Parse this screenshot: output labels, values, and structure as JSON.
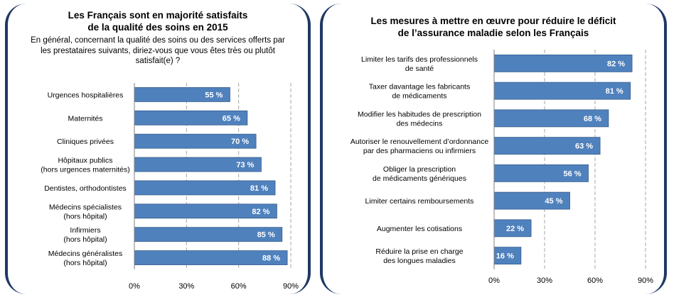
{
  "left_panel": {
    "title_line1": "Les Français sont en majorité satisfaits",
    "title_line2": "de la qualité des soins en 2015",
    "subtitle_line1": "En général, concernant la qualité des soins ou des services offerts par",
    "subtitle_line2": "les prestataires suivants, diriez-vous que vous êtes très ou plutôt",
    "subtitle_line3": "satisfait(e) ?"
  },
  "right_panel": {
    "title_line1": "Les mesures à mettre en œuvre pour réduire le déficit",
    "title_line2": "de l’assurance maladie selon les Français"
  },
  "colors": {
    "bar": "#4f81bd",
    "bar_border": "#385d8a",
    "frame": "#1f3864"
  },
  "chart_data": [
    {
      "type": "bar",
      "orientation": "horizontal",
      "title": "Les Français sont en majorité satisfaits de la qualité des soins en 2015",
      "categories": [
        [
          "Urgences hospitalières"
        ],
        [
          "Maternités"
        ],
        [
          "Cliniques privées"
        ],
        [
          "Hôpitaux publics",
          "(hors urgences maternités)"
        ],
        [
          "Dentistes, orthodontistes"
        ],
        [
          "Médecins spécialistes",
          "(hors hôpital)"
        ],
        [
          "Infirmiers",
          "(hors hôpital)"
        ],
        [
          "Médecins généralistes",
          "(hors hôpital)"
        ]
      ],
      "values": [
        55,
        65,
        70,
        73,
        81,
        82,
        85,
        88
      ],
      "data_labels": [
        "55 %",
        "65 %",
        "70 %",
        "73 %",
        "81 %",
        "82 %",
        "85 %",
        "88 %"
      ],
      "xlim": [
        0,
        90
      ],
      "xticks": [
        0,
        30,
        60,
        90
      ],
      "xtick_labels": [
        "0%",
        "30%",
        "60%",
        "90%"
      ],
      "grid": "vertical dashed"
    },
    {
      "type": "bar",
      "orientation": "horizontal",
      "title": "Les mesures à mettre en œuvre pour réduire le déficit de l’assurance maladie selon les Français",
      "categories": [
        [
          "Limiter les tarifs des professionnels",
          "de santé"
        ],
        [
          "Taxer davantage les fabricants",
          "de médicaments"
        ],
        [
          "Modifier les habitudes de prescription",
          "des médecins"
        ],
        [
          "Autoriser le renouvellement d’ordonnance",
          "par des pharmaciens ou infirmiers"
        ],
        [
          "Obliger la prescription",
          "de médicaments génériques"
        ],
        [
          "Limiter certains remboursements"
        ],
        [
          "Augmenter les cotisations"
        ],
        [
          "Réduire la prise en charge",
          "des longues maladies"
        ]
      ],
      "values": [
        82,
        81,
        68,
        63,
        56,
        45,
        22,
        16
      ],
      "data_labels": [
        "82 %",
        "81 %",
        "68 %",
        "63 %",
        "56 %",
        "45 %",
        "22 %",
        "16 %"
      ],
      "xlim": [
        0,
        90
      ],
      "xticks": [
        0,
        30,
        60,
        90
      ],
      "xtick_labels": [
        "0%",
        "30%",
        "60%",
        "90%"
      ],
      "grid": "vertical dashed"
    }
  ]
}
